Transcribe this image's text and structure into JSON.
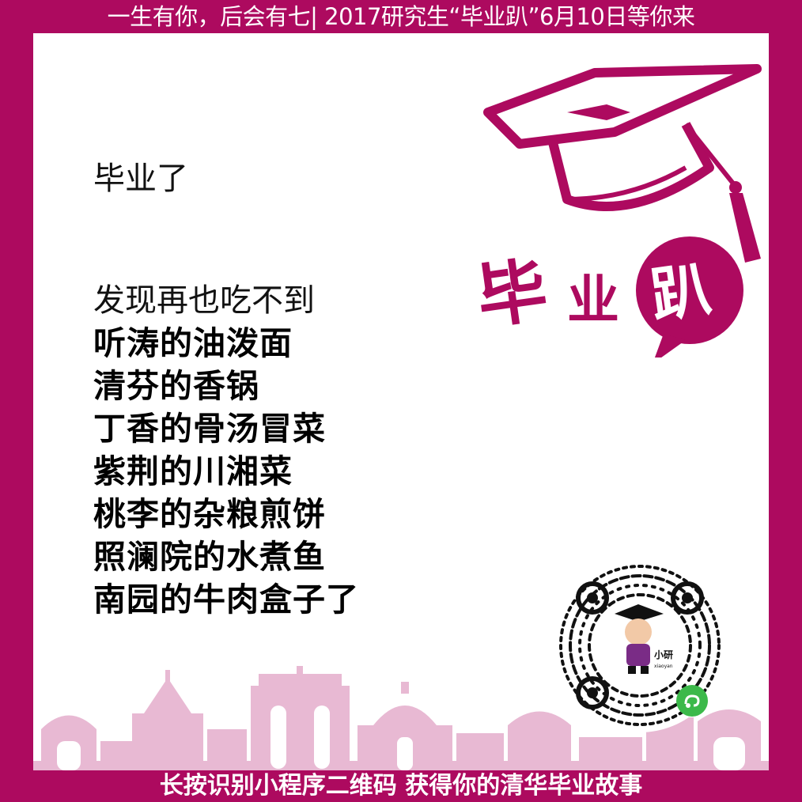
{
  "header": {
    "title": "一生有你，后会有七| 2017研究生“毕业趴”6月10日等你来"
  },
  "poster": {
    "intro": "毕业了",
    "lead": "发现再也吃不到",
    "lines": [
      "听涛的油泼面",
      "清芬的香锅",
      "丁香的骨汤冒菜",
      "紫荆的川湘菜",
      "桃李的杂粮煎饼",
      "照澜院的水煮鱼",
      "南园的牛肉盒子了"
    ],
    "logo": {
      "char1": "毕",
      "char2": "业",
      "char3": "趴"
    },
    "qr": {
      "mascot_name": "小研",
      "mascot_sub": "xiaoyan"
    }
  },
  "footer": {
    "cta": "长按识别小程序二维码 获得你的清华毕业故事"
  },
  "colors": {
    "brand": "#ad0a5f",
    "skyline": "#e8b9d3",
    "wechat_green": "#3cb94a"
  },
  "icons": [
    "graduation-cap-icon",
    "speech-bubble-icon",
    "mini-program-qr-icon",
    "mascot-icon",
    "skyline-illustration"
  ]
}
